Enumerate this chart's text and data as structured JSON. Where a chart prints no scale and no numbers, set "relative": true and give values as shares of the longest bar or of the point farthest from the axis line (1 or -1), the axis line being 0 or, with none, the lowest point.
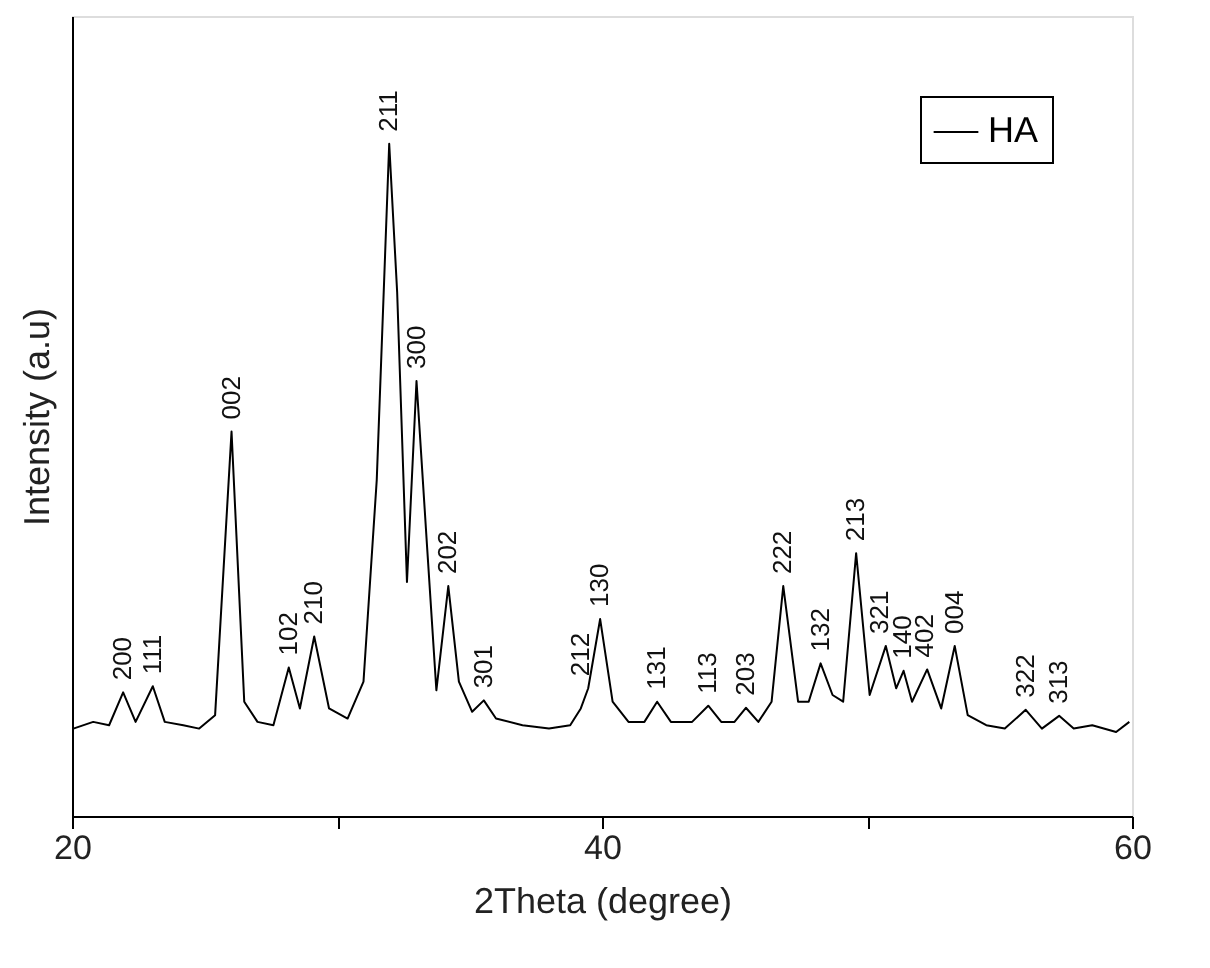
{
  "chart_data": {
    "type": "line",
    "xlabel": "2Theta (degree)",
    "ylabel": "Intensity (a.u)",
    "relative": true,
    "xlim": [
      20,
      60
    ],
    "xticks": [
      20,
      {
        "value": 30,
        "label": null
      },
      40,
      {
        "value": 50,
        "label": null
      },
      60
    ],
    "legend": "top right",
    "grid": false,
    "tick_labels": "x",
    "series": [
      {
        "name": "HA",
        "color": "#000000",
        "x": [
          20.05,
          20.8,
          21.4,
          21.93,
          22.4,
          23.05,
          23.5,
          24.2,
          24.8,
          25.4,
          26.02,
          26.5,
          27.0,
          27.6,
          28.18,
          28.6,
          29.14,
          29.7,
          30.4,
          31.0,
          31.5,
          31.97,
          32.27,
          32.64,
          33.0,
          33.4,
          33.75,
          34.2,
          34.6,
          35.1,
          35.54,
          36.0,
          37.0,
          38.0,
          38.8,
          39.2,
          39.48,
          39.93,
          40.4,
          41.0,
          41.6,
          42.08,
          42.6,
          43.4,
          44.01,
          44.5,
          45.0,
          45.43,
          45.9,
          46.4,
          46.84,
          47.4,
          47.8,
          48.25,
          48.7,
          49.1,
          49.59,
          50.1,
          50.71,
          51.1,
          51.38,
          51.7,
          52.27,
          52.8,
          53.31,
          53.8,
          54.5,
          55.2,
          55.99,
          56.6,
          57.25,
          57.8,
          58.5,
          59.4,
          59.9
        ],
        "values": [
          0.13,
          0.14,
          0.135,
          0.184,
          0.14,
          0.193,
          0.14,
          0.135,
          0.13,
          0.15,
          0.572,
          0.17,
          0.14,
          0.135,
          0.221,
          0.16,
          0.267,
          0.16,
          0.145,
          0.2,
          0.5,
          1.0,
          0.779,
          0.348,
          0.647,
          0.4,
          0.187,
          0.342,
          0.2,
          0.155,
          0.172,
          0.145,
          0.135,
          0.13,
          0.135,
          0.16,
          0.19,
          0.293,
          0.17,
          0.14,
          0.14,
          0.17,
          0.14,
          0.14,
          0.164,
          0.14,
          0.14,
          0.161,
          0.14,
          0.17,
          0.342,
          0.17,
          0.17,
          0.227,
          0.18,
          0.17,
          0.391,
          0.18,
          0.253,
          0.19,
          0.216,
          0.17,
          0.218,
          0.16,
          0.253,
          0.15,
          0.135,
          0.13,
          0.158,
          0.13,
          0.149,
          0.13,
          0.135,
          0.125,
          0.14
        ]
      }
    ],
    "annotations": [
      {
        "text": "200",
        "x": 21.93,
        "y": 0.184
      },
      {
        "text": "111",
        "x": 23.05,
        "y": 0.193
      },
      {
        "text": "002",
        "x": 26.02,
        "y": 0.572
      },
      {
        "text": "102",
        "x": 28.18,
        "y": 0.221
      },
      {
        "text": "210",
        "x": 29.14,
        "y": 0.267
      },
      {
        "text": "211",
        "x": 31.97,
        "y": 1.0
      },
      {
        "text": "300",
        "x": 33.0,
        "y": 0.647
      },
      {
        "text": "202",
        "x": 34.2,
        "y": 0.342
      },
      {
        "text": "301",
        "x": 35.54,
        "y": 0.172
      },
      {
        "text": "212",
        "x": 39.2,
        "y": 0.19
      },
      {
        "text": "130",
        "x": 39.93,
        "y": 0.293
      },
      {
        "text": "131",
        "x": 42.08,
        "y": 0.17
      },
      {
        "text": "113",
        "x": 44.01,
        "y": 0.164
      },
      {
        "text": "203",
        "x": 45.43,
        "y": 0.161
      },
      {
        "text": "222",
        "x": 46.84,
        "y": 0.342
      },
      {
        "text": "132",
        "x": 48.25,
        "y": 0.227
      },
      {
        "text": "213",
        "x": 49.59,
        "y": 0.391
      },
      {
        "text": "321",
        "x": 50.5,
        "y": 0.253
      },
      {
        "text": "140",
        "x": 51.35,
        "y": 0.216
      },
      {
        "text": "402",
        "x": 52.2,
        "y": 0.218
      },
      {
        "text": "004",
        "x": 53.31,
        "y": 0.253
      },
      {
        "text": "322",
        "x": 55.99,
        "y": 0.158
      },
      {
        "text": "313",
        "x": 57.25,
        "y": 0.149
      }
    ]
  }
}
